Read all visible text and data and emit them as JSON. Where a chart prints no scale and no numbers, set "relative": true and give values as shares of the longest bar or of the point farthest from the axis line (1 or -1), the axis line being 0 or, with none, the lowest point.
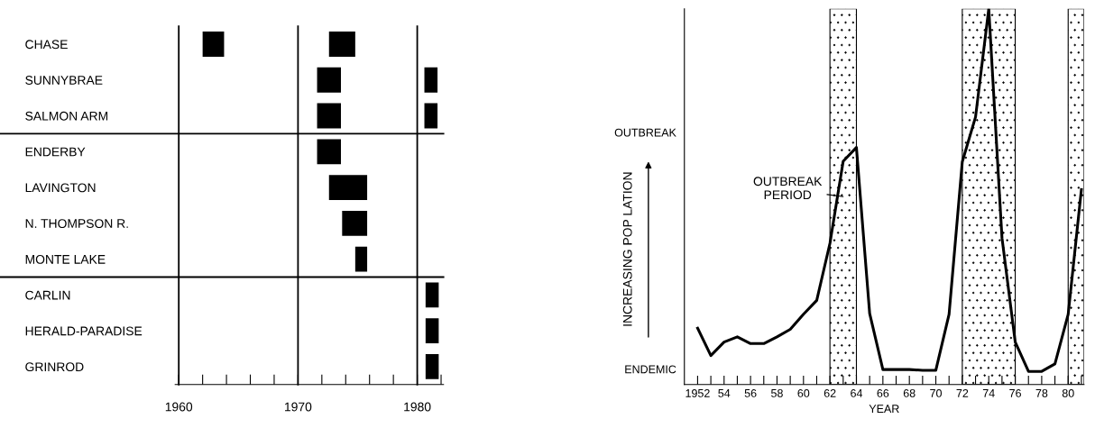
{
  "chart_data": [
    {
      "type": "bar",
      "orientation": "horizontal",
      "categories": [
        "CHASE",
        "SUNNYBRAE",
        "SALMON ARM",
        "ENDERBY",
        "LAVINGTON",
        "N. THOMPSON R.",
        "MONTE LAKE",
        "CARLIN",
        "HERALD-PARADISE",
        "GRINROD"
      ],
      "series": [
        {
          "color": "#000000",
          "base": [
            1962.0,
            1971.6,
            1971.6,
            1971.6,
            1972.6,
            1973.7,
            1974.8,
            null,
            null,
            null
          ],
          "values": [
            1.8,
            2.0,
            2.0,
            2.0,
            3.2,
            2.1,
            1.0,
            null,
            null,
            null
          ]
        },
        {
          "color": "#000000",
          "base": [
            1972.6,
            1980.6,
            1980.6,
            null,
            null,
            null,
            null,
            1980.7,
            1980.7,
            1980.7
          ],
          "values": [
            2.2,
            1.1,
            1.1,
            null,
            null,
            null,
            null,
            1.1,
            1.1,
            1.1
          ]
        }
      ],
      "xlim": [
        1959.7,
        1982.2
      ],
      "xticks": [
        1960,
        {
          "value": 1962,
          "label": null
        },
        {
          "value": 1964,
          "label": null
        },
        {
          "value": 1966,
          "label": null
        },
        {
          "value": 1968,
          "label": null
        },
        1970,
        {
          "value": 1972,
          "label": null
        },
        {
          "value": 1974,
          "label": null
        },
        {
          "value": 1976,
          "label": null
        },
        {
          "value": 1978,
          "label": null
        },
        1980,
        {
          "value": 1982,
          "label": null
        }
      ],
      "ref_lines": [
        {
          "axis": "x",
          "value": 1960
        },
        {
          "axis": "x",
          "value": 1970
        },
        {
          "axis": "x",
          "value": 1980
        }
      ],
      "grid": false,
      "legend": false
    },
    {
      "type": "line",
      "relative": true,
      "xlabel": "YEAR",
      "ylabel": "INCREASING POP LATION",
      "x": [
        1952,
        1953,
        1954,
        1955,
        1956,
        1957,
        1958,
        1959,
        1960,
        1961,
        1962,
        1963,
        1964,
        1965,
        1966,
        1967,
        1968,
        1969,
        1970,
        1971,
        1972,
        1973,
        1974,
        1975,
        1976,
        1977,
        1978,
        1979,
        1980,
        1981
      ],
      "series": [
        {
          "color": "#000000",
          "values": [
            0.15,
            0.077,
            0.113,
            0.127,
            0.109,
            0.109,
            0.127,
            0.147,
            0.187,
            0.224,
            0.376,
            0.594,
            0.631,
            0.189,
            0.04,
            0.04,
            0.04,
            0.038,
            0.038,
            0.187,
            0.593,
            0.712,
            1,
            0.39,
            0.113,
            0.035,
            0.035,
            0.055,
            0.187,
            0.519
          ]
        }
      ],
      "xlim": [
        1951,
        1981.2
      ],
      "xticks": [
        1952,
        {
          "value": 1953,
          "label": null
        },
        {
          "value": 1954,
          "label": "54"
        },
        {
          "value": 1955,
          "label": null
        },
        {
          "value": 1956,
          "label": "56"
        },
        {
          "value": 1957,
          "label": null
        },
        {
          "value": 1958,
          "label": "58"
        },
        {
          "value": 1959,
          "label": null
        },
        {
          "value": 1960,
          "label": "60"
        },
        {
          "value": 1961,
          "label": null
        },
        {
          "value": 1962,
          "label": "62"
        },
        {
          "value": 1963,
          "label": null
        },
        {
          "value": 1964,
          "label": "64"
        },
        {
          "value": 1965,
          "label": null
        },
        {
          "value": 1966,
          "label": "66"
        },
        {
          "value": 1967,
          "label": null
        },
        {
          "value": 1968,
          "label": "68"
        },
        {
          "value": 1969,
          "label": null
        },
        {
          "value": 1970,
          "label": "70"
        },
        {
          "value": 1971,
          "label": null
        },
        {
          "value": 1972,
          "label": "72"
        },
        {
          "value": 1973,
          "label": null
        },
        {
          "value": 1974,
          "label": "74"
        },
        {
          "value": 1975,
          "label": null
        },
        {
          "value": 1976,
          "label": "76"
        },
        {
          "value": 1977,
          "label": null
        },
        {
          "value": 1978,
          "label": "78"
        },
        {
          "value": 1979,
          "label": null
        },
        {
          "value": 1980,
          "label": "80"
        },
        {
          "value": 1981,
          "label": null
        }
      ],
      "bands": [
        {
          "axis": "x",
          "from": 1962,
          "to": 1964
        },
        {
          "axis": "x",
          "from": 1972,
          "to": 1976
        },
        {
          "axis": "x",
          "from": 1980,
          "to": 1981.2
        }
      ],
      "annotations": [
        {
          "text": "OUTBREAK\nPERIOD",
          "x": 1963,
          "y": 0.5
        },
        "OUTBREAK",
        "ENDEMIC"
      ],
      "marker": "none",
      "line_style": "solid",
      "grid": false,
      "legend": false
    }
  ]
}
